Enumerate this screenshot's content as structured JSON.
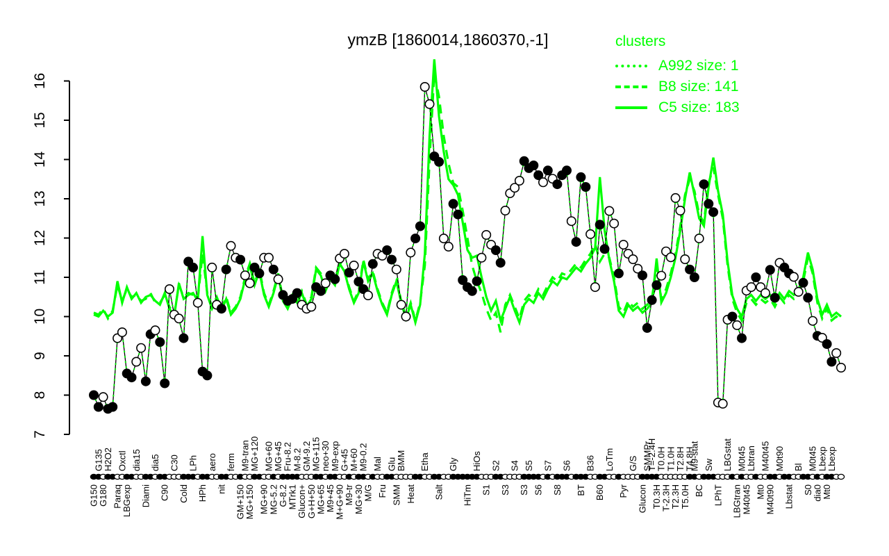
{
  "title": "ymzB [1860014,1860370,-1]",
  "legend": {
    "title": "clusters",
    "items": [
      {
        "label": "A992 size: 1",
        "style": "dotted"
      },
      {
        "label": "B8 size: 141",
        "style": "dashed"
      },
      {
        "label": "C5 size: 183",
        "style": "solid"
      }
    ]
  },
  "colors": {
    "cluster_green": "#00ff00",
    "series_black": "#000000",
    "background": "#ffffff"
  },
  "chart_data": {
    "type": "line",
    "title": "ymzB [1860014,1860370,-1]",
    "ylabel": "",
    "xlabel": "",
    "ylim": [
      7,
      16.6
    ],
    "y_ticks": [
      7,
      8,
      9,
      10,
      11,
      12,
      13,
      14,
      15,
      16
    ],
    "grid": false,
    "legend_position": "top-right",
    "n_points": 159,
    "series": [
      {
        "name": "ymzB expression profile",
        "color": "#000000",
        "line": "solid",
        "marker": "circle",
        "values": [
          8.0,
          7.7,
          7.95,
          7.65,
          7.7,
          9.45,
          9.6,
          8.55,
          8.45,
          8.85,
          9.2,
          8.35,
          9.55,
          9.65,
          9.35,
          8.3,
          10.7,
          10.05,
          9.95,
          9.45,
          11.4,
          11.25,
          10.35,
          8.6,
          8.5,
          11.25,
          10.3,
          10.2,
          11.2,
          11.8,
          11.5,
          11.45,
          11.05,
          10.85,
          11.25,
          11.1,
          11.5,
          11.5,
          11.2,
          10.95,
          10.55,
          10.4,
          10.45,
          10.6,
          10.3,
          10.2,
          10.25,
          10.75,
          10.65,
          10.85,
          11.05,
          10.95,
          11.48,
          11.6,
          11.12,
          11.3,
          10.89,
          10.7,
          10.54,
          11.34,
          11.6,
          11.55,
          11.69,
          11.45,
          11.2,
          10.3,
          10.0,
          11.63,
          11.99,
          12.3,
          15.85,
          15.41,
          14.08,
          13.94,
          11.99,
          11.78,
          12.87,
          12.6,
          10.93,
          10.75,
          10.65,
          10.9,
          11.5,
          12.08,
          11.83,
          11.69,
          11.37,
          12.7,
          13.14,
          13.28,
          13.46,
          13.96,
          13.78,
          13.85,
          13.6,
          13.42,
          13.72,
          13.51,
          13.37,
          13.6,
          13.72,
          12.43,
          11.9,
          13.55,
          13.3,
          12.1,
          10.75,
          12.34,
          11.72,
          12.69,
          12.37,
          11.1,
          11.83,
          11.6,
          11.46,
          11.22,
          11.05,
          9.71,
          10.42,
          10.8,
          11.04,
          11.66,
          11.51,
          13.02,
          12.7,
          11.46,
          11.2,
          11.0,
          11.99,
          13.37,
          12.87,
          12.66,
          7.81,
          7.78,
          9.92,
          10.0,
          9.78,
          9.45,
          10.66,
          10.75,
          11.0,
          10.75,
          10.6,
          11.19,
          10.48,
          11.37,
          11.25,
          11.1,
          11.01,
          10.63,
          10.86,
          10.48,
          9.89,
          9.51,
          9.46,
          9.3,
          8.85,
          9.07,
          8.7
        ],
        "open_marker": [
          0,
          0,
          1,
          0,
          0,
          1,
          1,
          0,
          0,
          1,
          1,
          0,
          0,
          1,
          0,
          0,
          1,
          1,
          1,
          0,
          0,
          0,
          1,
          0,
          0,
          1,
          1,
          0,
          0,
          1,
          1,
          0,
          1,
          1,
          0,
          0,
          1,
          1,
          0,
          1,
          0,
          0,
          0,
          0,
          1,
          1,
          1,
          0,
          0,
          1,
          0,
          0,
          1,
          1,
          0,
          1,
          0,
          0,
          1,
          0,
          1,
          1,
          0,
          0,
          1,
          1,
          1,
          1,
          0,
          0,
          1,
          1,
          0,
          0,
          1,
          1,
          0,
          0,
          0,
          0,
          0,
          0,
          1,
          1,
          1,
          0,
          0,
          1,
          1,
          1,
          1,
          0,
          0,
          0,
          0,
          1,
          0,
          1,
          0,
          0,
          0,
          1,
          0,
          0,
          0,
          1,
          1,
          0,
          0,
          1,
          1,
          0,
          1,
          1,
          1,
          1,
          0,
          0,
          0,
          0,
          1,
          1,
          1,
          1,
          1,
          1,
          0,
          0,
          1,
          0,
          0,
          0,
          1,
          1,
          1,
          0,
          1,
          0,
          1,
          1,
          0,
          1,
          1,
          0,
          0,
          1,
          0,
          0,
          1,
          1,
          0,
          0,
          1,
          0,
          1,
          0,
          0,
          1,
          1
        ]
      },
      {
        "name": "A992 size: 1",
        "color": "#00ff00",
        "line": "dotted",
        "follows": "ymzB expression profile"
      },
      {
        "name": "B8 size: 141",
        "color": "#00ff00",
        "line": "dashed",
        "values": [
          10.1,
          10.05,
          10.2,
          9.95,
          10.15,
          10.8,
          10.4,
          10.7,
          10.5,
          10.55,
          10.4,
          10.45,
          10.6,
          10.35,
          10.35,
          10.55,
          10.25,
          10.05,
          10.8,
          10.5,
          10.6,
          10.55,
          10.45,
          11.6,
          10.6,
          10.25,
          10.5,
          10.2,
          10.5,
          10.1,
          10.25,
          10.5,
          11.0,
          11.35,
          10.85,
          11.2,
          10.6,
          10.3,
          10.65,
          11.1,
          10.45,
          10.25,
          10.55,
          10.4,
          10.65,
          10.3,
          10.5,
          11.25,
          11.1,
          10.7,
          11.0,
          10.85,
          11.4,
          11.2,
          10.75,
          10.4,
          10.65,
          11.45,
          10.95,
          11.15,
          10.7,
          10.35,
          10.1,
          10.6,
          10.95,
          10.4,
          10.0,
          10.35,
          9.9,
          10.35,
          11.3,
          14.0,
          16.2,
          15.6,
          14.6,
          13.9,
          13.4,
          13.3,
          12.7,
          12.0,
          11.3,
          10.9,
          10.6,
          10.2,
          9.9,
          10.1,
          9.6,
          10.3,
          10.55,
          10.25,
          9.95,
          10.4,
          10.55,
          10.45,
          10.7,
          10.55,
          10.8,
          11.0,
          10.9,
          11.1,
          11.05,
          11.2,
          11.35,
          11.25,
          11.45,
          11.6,
          11.85,
          11.4,
          11.6,
          11.5,
          11.0,
          10.25,
          10.1,
          10.4,
          10.25,
          10.35,
          10.2,
          10.3,
          10.45,
          11.3,
          10.45,
          10.7,
          11.1,
          11.6,
          12.3,
          13.1,
          13.5,
          13.2,
          12.6,
          12.4,
          13.4,
          13.8,
          13.1,
          12.5,
          11.3,
          10.45,
          10.1,
          9.9,
          10.35,
          10.45,
          10.3,
          10.45,
          10.35,
          10.45,
          10.25,
          10.5,
          10.35,
          10.55,
          10.45,
          10.6,
          10.9,
          11.5,
          11.1,
          10.35,
          9.95,
          10.2,
          9.9,
          10.0,
          9.9
        ]
      },
      {
        "name": "C5 size: 183",
        "color": "#00ff00",
        "line": "solid",
        "values": [
          10.05,
          10.0,
          10.15,
          10.0,
          10.1,
          10.9,
          10.35,
          10.75,
          10.45,
          10.6,
          10.35,
          10.5,
          10.55,
          10.4,
          10.3,
          10.6,
          10.2,
          10.0,
          10.85,
          10.45,
          10.55,
          10.6,
          10.4,
          12.05,
          10.55,
          10.2,
          10.45,
          10.15,
          10.45,
          10.05,
          10.2,
          10.45,
          10.95,
          11.3,
          10.8,
          11.15,
          10.55,
          10.25,
          10.6,
          11.05,
          10.4,
          10.2,
          10.5,
          10.35,
          10.6,
          10.25,
          10.45,
          11.2,
          11.05,
          10.65,
          10.95,
          10.8,
          11.35,
          11.15,
          10.7,
          10.35,
          10.6,
          11.4,
          10.9,
          11.1,
          10.65,
          10.3,
          10.05,
          10.55,
          10.9,
          10.35,
          9.95,
          10.3,
          9.85,
          10.3,
          11.6,
          14.6,
          16.55,
          15.1,
          14.2,
          13.5,
          13.35,
          13.1,
          12.4,
          11.7,
          11.5,
          11.55,
          11.0,
          10.5,
          10.15,
          10.4,
          9.9,
          10.2,
          10.5,
          10.15,
          9.85,
          10.3,
          10.45,
          10.35,
          10.6,
          10.45,
          10.7,
          10.9,
          10.8,
          11.0,
          10.95,
          11.1,
          11.25,
          11.15,
          11.35,
          11.5,
          11.75,
          13.55,
          12.2,
          11.45,
          10.9,
          10.15,
          10.0,
          10.3,
          10.15,
          10.25,
          10.1,
          10.2,
          10.35,
          11.48,
          10.36,
          10.6,
          11.0,
          11.5,
          12.2,
          13.0,
          13.67,
          13.1,
          12.5,
          12.31,
          13.3,
          14.05,
          13.2,
          12.6,
          11.4,
          10.54,
          10.2,
          10.0,
          10.45,
          10.55,
          10.4,
          10.55,
          10.45,
          10.55,
          10.36,
          10.6,
          10.45,
          10.65,
          10.55,
          10.7,
          11.0,
          11.63,
          11.2,
          10.45,
          10.05,
          10.3,
          10.0,
          10.1,
          10.0
        ]
      }
    ],
    "x_labels_bottom": [
      {
        "t": "G150",
        "i": 0
      },
      {
        "t": "G180",
        "i": 2
      },
      {
        "t": "Paraq",
        "i": 5
      },
      {
        "t": "LBGexp",
        "i": 7
      },
      {
        "t": "Diami",
        "i": 11
      },
      {
        "t": "C90",
        "i": 15
      },
      {
        "t": "Cold",
        "i": 19
      },
      {
        "t": "HPh",
        "i": 23
      },
      {
        "t": "nit",
        "i": 27
      },
      {
        "t": "GM+150",
        "i": 31
      },
      {
        "t": "MG+150",
        "i": 33
      },
      {
        "t": "MG+90",
        "i": 36
      },
      {
        "t": "MG-5.2",
        "i": 38
      },
      {
        "t": "G-8.2",
        "i": 40
      },
      {
        "t": "MTrk1",
        "i": 42
      },
      {
        "t": "Glucon+",
        "i": 44
      },
      {
        "t": "G+H+50",
        "i": 46
      },
      {
        "t": "MG+65",
        "i": 48
      },
      {
        "t": "M9+45",
        "i": 50
      },
      {
        "t": "M+G+90",
        "i": 52
      },
      {
        "t": "M9-tr",
        "i": 54
      },
      {
        "t": "MG+30",
        "i": 56
      },
      {
        "t": "M/G",
        "i": 58
      },
      {
        "t": "Fru",
        "i": 61
      },
      {
        "t": "SMM",
        "i": 64
      },
      {
        "t": "Heat",
        "i": 67
      },
      {
        "t": "Salt",
        "i": 73
      },
      {
        "t": "HiTm",
        "i": 79
      },
      {
        "t": "S1",
        "i": 83
      },
      {
        "t": "S3",
        "i": 87
      },
      {
        "t": "S3",
        "i": 91
      },
      {
        "t": "S6",
        "i": 94
      },
      {
        "t": "S8",
        "i": 98
      },
      {
        "t": "BT",
        "i": 103
      },
      {
        "t": "B60",
        "i": 107
      },
      {
        "t": "Pyr",
        "i": 112
      },
      {
        "t": "Glucon",
        "i": 116
      },
      {
        "t": "T0.3H",
        "i": 119
      },
      {
        "t": "T-2.3H",
        "i": 121
      },
      {
        "t": "T2.3H",
        "i": 123
      },
      {
        "t": "T5.0H",
        "i": 125
      },
      {
        "t": "BC",
        "i": 128
      },
      {
        "t": "LPhT",
        "i": 132
      },
      {
        "t": "LBGtran",
        "i": 136
      },
      {
        "t": "M40t45",
        "i": 138
      },
      {
        "t": "Mt0",
        "i": 141
      },
      {
        "t": "M40t90",
        "i": 143
      },
      {
        "t": "Lbstat",
        "i": 147
      },
      {
        "t": "S0",
        "i": 151
      },
      {
        "t": "dia0",
        "i": 153
      },
      {
        "t": "Mt0",
        "i": 155
      }
    ],
    "x_labels_top": [
      {
        "t": "G135",
        "i": 1
      },
      {
        "t": "H2O2",
        "i": 3
      },
      {
        "t": "Oxctl",
        "i": 6
      },
      {
        "t": "dia15",
        "i": 9
      },
      {
        "t": "dia5",
        "i": 13
      },
      {
        "t": "C30",
        "i": 17
      },
      {
        "t": "LPh",
        "i": 21
      },
      {
        "t": "aero",
        "i": 25
      },
      {
        "t": "ferm",
        "i": 29
      },
      {
        "t": "M9-tran",
        "i": 32
      },
      {
        "t": "MG+120",
        "i": 34
      },
      {
        "t": "MG+60",
        "i": 37
      },
      {
        "t": "MG+45",
        "i": 39
      },
      {
        "t": "Fru-8.2",
        "i": 41
      },
      {
        "t": "M-8.2",
        "i": 43
      },
      {
        "t": "GM-9.2",
        "i": 45
      },
      {
        "t": "MG+115",
        "i": 47
      },
      {
        "t": "neo+30",
        "i": 49
      },
      {
        "t": "M9-exp",
        "i": 51
      },
      {
        "t": "G+45",
        "i": 53
      },
      {
        "t": "M+60",
        "i": 55
      },
      {
        "t": "M9-0.2",
        "i": 57
      },
      {
        "t": "Mal",
        "i": 60
      },
      {
        "t": "Glu",
        "i": 63
      },
      {
        "t": "BMM",
        "i": 65
      },
      {
        "t": "Etha",
        "i": 70
      },
      {
        "t": "Gly",
        "i": 76
      },
      {
        "t": "HiOs",
        "i": 81
      },
      {
        "t": "S2",
        "i": 85
      },
      {
        "t": "S4",
        "i": 89
      },
      {
        "t": "S5",
        "i": 92
      },
      {
        "t": "S7",
        "i": 96
      },
      {
        "t": "S6",
        "i": 100
      },
      {
        "t": "B36",
        "i": 105
      },
      {
        "t": "LoTm",
        "i": 109
      },
      {
        "t": "G/S",
        "i": 114
      },
      {
        "t": "SMMPr",
        "i": 117
      },
      {
        "t": "T=-2.4H",
        "i": 118
      },
      {
        "t": "T0.0H",
        "i": 120
      },
      {
        "t": "T1.0H",
        "i": 122
      },
      {
        "t": "T2.8H",
        "i": 124
      },
      {
        "t": "T4.8H",
        "i": 126
      },
      {
        "t": "M9-stat",
        "i": 127
      },
      {
        "t": "Sw",
        "i": 130
      },
      {
        "t": "LBGstat",
        "i": 134
      },
      {
        "t": "M0t45",
        "i": 137
      },
      {
        "t": "Lbtran",
        "i": 139
      },
      {
        "t": "M40t45",
        "i": 142
      },
      {
        "t": "M0t90",
        "i": 145
      },
      {
        "t": "Bl",
        "i": 149
      },
      {
        "t": "M0t45",
        "i": 152
      },
      {
        "t": "Lbexp",
        "i": 154
      },
      {
        "t": "Lbexp",
        "i": 156
      }
    ]
  }
}
